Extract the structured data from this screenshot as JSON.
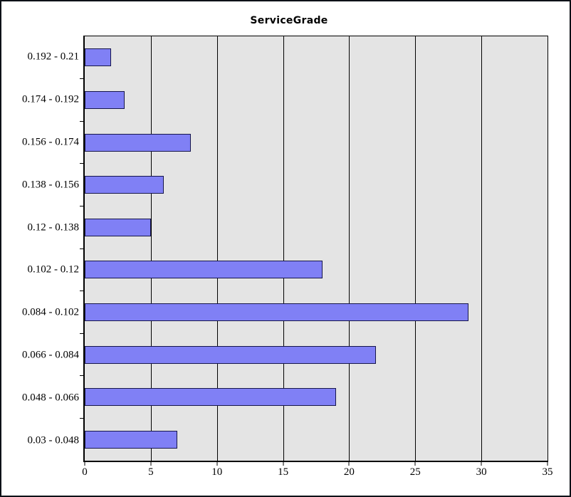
{
  "chart_data": {
    "type": "bar",
    "orientation": "horizontal",
    "title": "ServiceGrade",
    "categories": [
      "0.192 - 0.21",
      "0.174 - 0.192",
      "0.156 - 0.174",
      "0.138 - 0.156",
      "0.12 - 0.138",
      "0.102 - 0.12",
      "0.084 - 0.102",
      "0.066 - 0.084",
      "0.048 - 0.066",
      "0.03 - 0.048"
    ],
    "values": [
      2,
      3,
      8,
      6,
      5,
      18,
      29,
      22,
      19,
      7
    ],
    "x_ticks": [
      0,
      5,
      10,
      15,
      20,
      25,
      30,
      35
    ],
    "xlim": [
      0,
      35
    ],
    "xlabel": "",
    "ylabel": "",
    "legend": "none",
    "grid": "vertical",
    "colors": {
      "bar_fill": "#8080f5",
      "bar_border": "#16164b",
      "plot_background": "#e4e4e4",
      "gridline": "#000000",
      "text": "#000000",
      "frame_border": "#0d1117",
      "page_background": "#ffffff"
    }
  }
}
